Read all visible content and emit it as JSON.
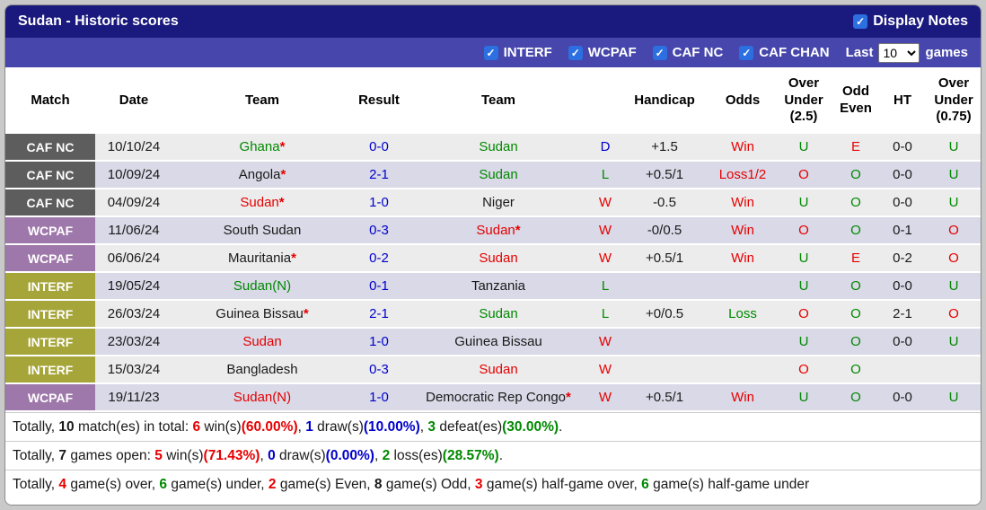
{
  "header": {
    "title": "Sudan - Historic scores",
    "display_notes_label": "Display Notes",
    "display_notes_checked": true
  },
  "icons": {
    "checkmark": "✓"
  },
  "filters": {
    "leagues": [
      {
        "label": "INTERF",
        "checked": true
      },
      {
        "label": "WCPAF",
        "checked": true
      },
      {
        "label": "CAF NC",
        "checked": true
      },
      {
        "label": "CAF CHAN",
        "checked": true
      }
    ],
    "last_label": "Last",
    "last_games_value": "10",
    "games_label": "games"
  },
  "colors": {
    "title_bar": "#1a1a7e",
    "filter_bar": "#4646ac",
    "checkbox": "#2c6fe0",
    "row_odd": "#ececec",
    "row_even": "#d9d9e7",
    "red": "#e60000",
    "green": "#008800",
    "blue": "#0000cc"
  },
  "table": {
    "headers": [
      "Match",
      "Date",
      "Team",
      "Result",
      "Team",
      "",
      "Handicap",
      "Odds",
      "Over\nUnder\n(2.5)",
      "Odd\nEven",
      "HT",
      "Over\nUnder\n(0.75)"
    ],
    "rows": [
      {
        "league": {
          "text": "CAF NC",
          "color": "#5d5d5d"
        },
        "date": "10/10/24",
        "home": {
          "text": "Ghana",
          "star": true,
          "color": "green"
        },
        "result": "0-0",
        "away": {
          "text": "Sudan",
          "star": false,
          "color": "green"
        },
        "wld": {
          "text": "D",
          "color": "blue"
        },
        "handicap": "+1.5",
        "odds": {
          "text": "Win",
          "color": "red"
        },
        "ou25": {
          "text": "U",
          "color": "green"
        },
        "oe": {
          "text": "E",
          "color": "red"
        },
        "ht": "0-0",
        "ou075": {
          "text": "U",
          "color": "green"
        }
      },
      {
        "league": {
          "text": "CAF NC",
          "color": "#5d5d5d"
        },
        "date": "10/09/24",
        "home": {
          "text": "Angola",
          "star": true,
          "color": "black"
        },
        "result": "2-1",
        "away": {
          "text": "Sudan",
          "star": false,
          "color": "green"
        },
        "wld": {
          "text": "L",
          "color": "green"
        },
        "handicap": "+0.5/1",
        "odds": {
          "text": "Loss1/2",
          "color": "red"
        },
        "ou25": {
          "text": "O",
          "color": "red"
        },
        "oe": {
          "text": "O",
          "color": "green"
        },
        "ht": "0-0",
        "ou075": {
          "text": "U",
          "color": "green"
        }
      },
      {
        "league": {
          "text": "CAF NC",
          "color": "#5d5d5d"
        },
        "date": "04/09/24",
        "home": {
          "text": "Sudan",
          "star": true,
          "color": "red"
        },
        "result": "1-0",
        "away": {
          "text": "Niger",
          "star": false,
          "color": "black"
        },
        "wld": {
          "text": "W",
          "color": "red"
        },
        "handicap": "-0.5",
        "odds": {
          "text": "Win",
          "color": "red"
        },
        "ou25": {
          "text": "U",
          "color": "green"
        },
        "oe": {
          "text": "O",
          "color": "green"
        },
        "ht": "0-0",
        "ou075": {
          "text": "U",
          "color": "green"
        }
      },
      {
        "league": {
          "text": "WCPAF",
          "color": "#9e78aa"
        },
        "date": "11/06/24",
        "home": {
          "text": "South Sudan",
          "star": false,
          "color": "black"
        },
        "result": "0-3",
        "away": {
          "text": "Sudan",
          "star": true,
          "color": "red"
        },
        "wld": {
          "text": "W",
          "color": "red"
        },
        "handicap": "-0/0.5",
        "odds": {
          "text": "Win",
          "color": "red"
        },
        "ou25": {
          "text": "O",
          "color": "red"
        },
        "oe": {
          "text": "O",
          "color": "green"
        },
        "ht": "0-1",
        "ou075": {
          "text": "O",
          "color": "red"
        }
      },
      {
        "league": {
          "text": "WCPAF",
          "color": "#9e78aa"
        },
        "date": "06/06/24",
        "home": {
          "text": "Mauritania",
          "star": true,
          "color": "black"
        },
        "result": "0-2",
        "away": {
          "text": "Sudan",
          "star": false,
          "color": "red"
        },
        "wld": {
          "text": "W",
          "color": "red"
        },
        "handicap": "+0.5/1",
        "odds": {
          "text": "Win",
          "color": "red"
        },
        "ou25": {
          "text": "U",
          "color": "green"
        },
        "oe": {
          "text": "E",
          "color": "red"
        },
        "ht": "0-2",
        "ou075": {
          "text": "O",
          "color": "red"
        }
      },
      {
        "league": {
          "text": "INTERF",
          "color": "#a6a53a"
        },
        "date": "19/05/24",
        "home": {
          "text": "Sudan(N)",
          "star": false,
          "color": "green"
        },
        "result": "0-1",
        "away": {
          "text": "Tanzania",
          "star": false,
          "color": "black"
        },
        "wld": {
          "text": "L",
          "color": "green"
        },
        "handicap": "",
        "odds": null,
        "ou25": {
          "text": "U",
          "color": "green"
        },
        "oe": {
          "text": "O",
          "color": "green"
        },
        "ht": "0-0",
        "ou075": {
          "text": "U",
          "color": "green"
        }
      },
      {
        "league": {
          "text": "INTERF",
          "color": "#a6a53a"
        },
        "date": "26/03/24",
        "home": {
          "text": "Guinea Bissau",
          "star": true,
          "color": "black"
        },
        "result": "2-1",
        "away": {
          "text": "Sudan",
          "star": false,
          "color": "green"
        },
        "wld": {
          "text": "L",
          "color": "green"
        },
        "handicap": "+0/0.5",
        "odds": {
          "text": "Loss",
          "color": "green"
        },
        "ou25": {
          "text": "O",
          "color": "red"
        },
        "oe": {
          "text": "O",
          "color": "green"
        },
        "ht": "2-1",
        "ou075": {
          "text": "O",
          "color": "red"
        }
      },
      {
        "league": {
          "text": "INTERF",
          "color": "#a6a53a"
        },
        "date": "23/03/24",
        "home": {
          "text": "Sudan",
          "star": false,
          "color": "red"
        },
        "result": "1-0",
        "away": {
          "text": "Guinea Bissau",
          "star": false,
          "color": "black"
        },
        "wld": {
          "text": "W",
          "color": "red"
        },
        "handicap": "",
        "odds": null,
        "ou25": {
          "text": "U",
          "color": "green"
        },
        "oe": {
          "text": "O",
          "color": "green"
        },
        "ht": "0-0",
        "ou075": {
          "text": "U",
          "color": "green"
        }
      },
      {
        "league": {
          "text": "INTERF",
          "color": "#a6a53a"
        },
        "date": "15/03/24",
        "home": {
          "text": "Bangladesh",
          "star": false,
          "color": "black"
        },
        "result": "0-3",
        "away": {
          "text": "Sudan",
          "star": false,
          "color": "red"
        },
        "wld": {
          "text": "W",
          "color": "red"
        },
        "handicap": "",
        "odds": null,
        "ou25": {
          "text": "O",
          "color": "red"
        },
        "oe": {
          "text": "O",
          "color": "green"
        },
        "ht": "",
        "ou075": null
      },
      {
        "league": {
          "text": "WCPAF",
          "color": "#9e78aa"
        },
        "date": "19/11/23",
        "home": {
          "text": "Sudan(N)",
          "star": false,
          "color": "red"
        },
        "result": "1-0",
        "away": {
          "text": "Democratic Rep Congo",
          "star": true,
          "color": "black"
        },
        "wld": {
          "text": "W",
          "color": "red"
        },
        "handicap": "+0.5/1",
        "odds": {
          "text": "Win",
          "color": "red"
        },
        "ou25": {
          "text": "U",
          "color": "green"
        },
        "oe": {
          "text": "O",
          "color": "green"
        },
        "ht": "0-0",
        "ou075": {
          "text": "U",
          "color": "green"
        }
      }
    ]
  },
  "summary": {
    "lines": [
      [
        {
          "t": "Totally, "
        },
        {
          "t": "10",
          "b": true
        },
        {
          "t": " match(es) in total: "
        },
        {
          "t": "6",
          "c": "red",
          "b": true
        },
        {
          "t": " win(s)"
        },
        {
          "t": "(60.00%)",
          "c": "red",
          "b": true
        },
        {
          "t": ", "
        },
        {
          "t": "1",
          "c": "blue",
          "b": true
        },
        {
          "t": " draw(s)"
        },
        {
          "t": "(10.00%)",
          "c": "blue",
          "b": true
        },
        {
          "t": ", "
        },
        {
          "t": "3",
          "c": "green",
          "b": true
        },
        {
          "t": " defeat(es)"
        },
        {
          "t": "(30.00%)",
          "c": "green",
          "b": true
        },
        {
          "t": "."
        }
      ],
      [
        {
          "t": "Totally, "
        },
        {
          "t": "7",
          "b": true
        },
        {
          "t": " games open: "
        },
        {
          "t": "5",
          "c": "red",
          "b": true
        },
        {
          "t": " win(s)"
        },
        {
          "t": "(71.43%)",
          "c": "red",
          "b": true
        },
        {
          "t": ", "
        },
        {
          "t": "0",
          "c": "blue",
          "b": true
        },
        {
          "t": " draw(s)"
        },
        {
          "t": "(0.00%)",
          "c": "blue",
          "b": true
        },
        {
          "t": ", "
        },
        {
          "t": "2",
          "c": "green",
          "b": true
        },
        {
          "t": " loss(es)"
        },
        {
          "t": "(28.57%)",
          "c": "green",
          "b": true
        },
        {
          "t": "."
        }
      ],
      [
        {
          "t": "Totally, "
        },
        {
          "t": "4",
          "c": "red",
          "b": true
        },
        {
          "t": " game(s) over, "
        },
        {
          "t": "6",
          "c": "green",
          "b": true
        },
        {
          "t": " game(s) under, "
        },
        {
          "t": "2",
          "c": "red",
          "b": true
        },
        {
          "t": " game(s) Even, "
        },
        {
          "t": "8",
          "b": true
        },
        {
          "t": " game(s) Odd, "
        },
        {
          "t": "3",
          "c": "red",
          "b": true
        },
        {
          "t": " game(s) half-game over, "
        },
        {
          "t": "6",
          "c": "green",
          "b": true
        },
        {
          "t": " game(s) half-game under"
        }
      ]
    ]
  }
}
